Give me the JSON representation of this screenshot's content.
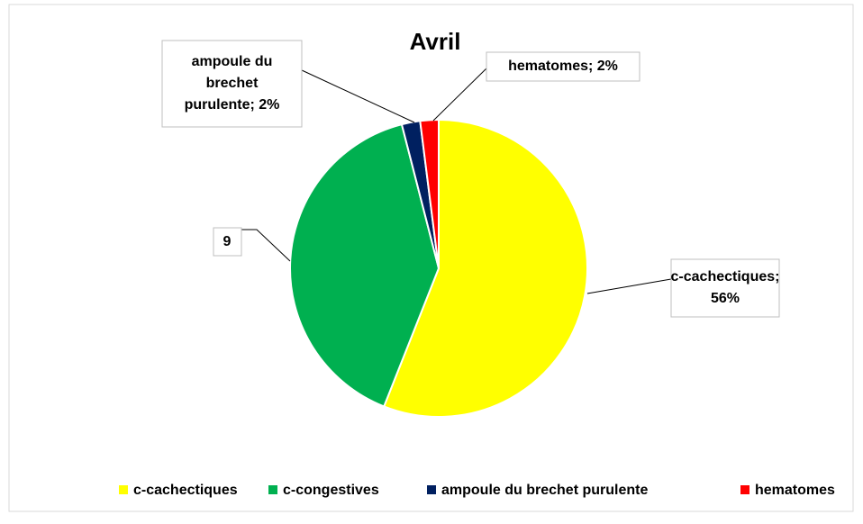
{
  "chart_data": {
    "type": "pie",
    "title": "Avril",
    "categories": [
      "c-cachectiques",
      "c-congestives",
      "ampoule du brechet purulente",
      "hematomes"
    ],
    "values": [
      56,
      40,
      2,
      2
    ],
    "value_labels": [
      [
        "c-cachectiques;",
        "56%"
      ],
      null,
      [
        "ampoule du",
        "brechet",
        "purulente; 2%"
      ],
      [
        "hematomes; 2%"
      ]
    ],
    "annotations": [
      "9"
    ],
    "colors": [
      "#ffff00",
      "#00b050",
      "#002060",
      "#ff0000"
    ],
    "legend": "bottom"
  }
}
